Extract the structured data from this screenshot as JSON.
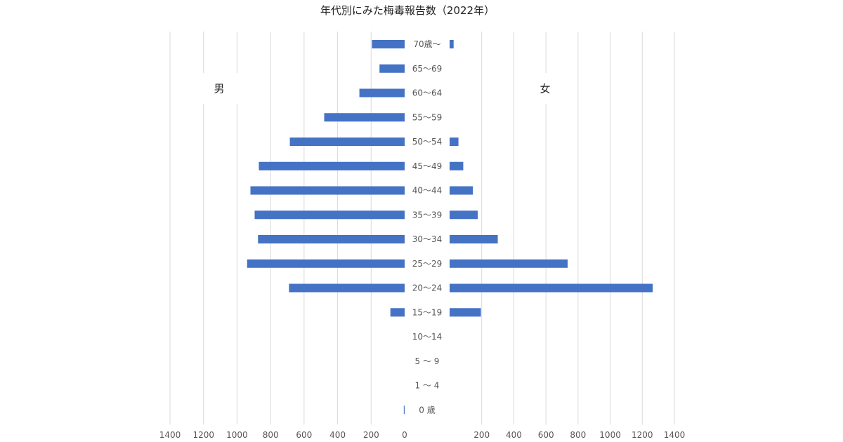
{
  "chart_data": {
    "type": "bar",
    "title": "年代別にみた梅毒報告数（2022年）",
    "orientation": "horizontal-butterfly",
    "categories": [
      "0 歳",
      "1 ～ 4",
      "5 ～ 9",
      "10～14",
      "15～19",
      "20～24",
      "25～29",
      "30～34",
      "35～39",
      "40～44",
      "45～49",
      "50～54",
      "55～59",
      "60～64",
      "65～69",
      "70歳～"
    ],
    "series": [
      {
        "name": "男",
        "values": [
          5,
          0,
          0,
          0,
          85,
          690,
          940,
          875,
          895,
          920,
          870,
          685,
          480,
          270,
          150,
          195
        ]
      },
      {
        "name": "女",
        "values": [
          0,
          0,
          0,
          0,
          195,
          1265,
          735,
          300,
          175,
          145,
          85,
          55,
          0,
          0,
          0,
          25
        ]
      }
    ],
    "xlim": [
      0,
      1400
    ],
    "ticks": [
      "1400",
      "1200",
      "1000",
      "800",
      "600",
      "400",
      "200",
      "0"
    ],
    "ticks_right": [
      "200",
      "400",
      "600",
      "800",
      "1000",
      "1200",
      "1400"
    ],
    "grid": true,
    "colors": {
      "bar": "#4472C4"
    }
  }
}
